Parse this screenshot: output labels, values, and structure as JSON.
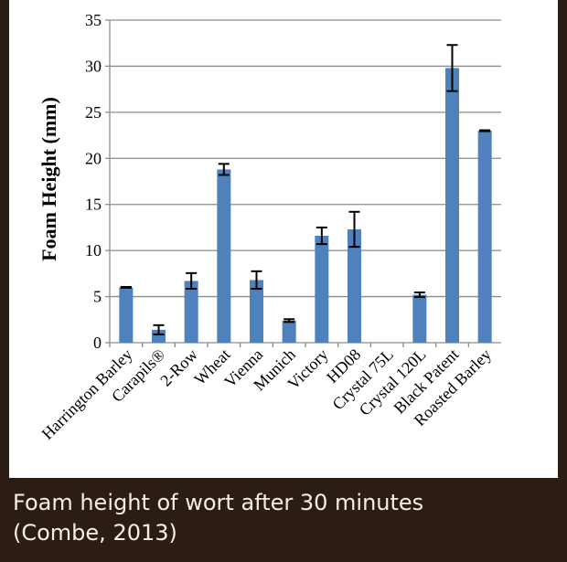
{
  "chart_data": {
    "type": "bar",
    "ylabel": "Foam Height (mm)",
    "xlabel": "",
    "ylim": [
      0,
      35
    ],
    "yticks": [
      0,
      5,
      10,
      15,
      20,
      25,
      30,
      35
    ],
    "grid": true,
    "categories": [
      "Harrington Barley",
      "Carapils®",
      "2-Row",
      "Wheat",
      "Vienna",
      "Munich",
      "Victory",
      "HD08",
      "Crystal 75L",
      "Crystal 120L",
      "Black Patent",
      "Roasted Barley"
    ],
    "values": [
      6.0,
      1.4,
      6.7,
      18.8,
      6.8,
      2.4,
      11.6,
      12.3,
      0,
      5.2,
      29.8,
      23.0
    ],
    "errors": [
      0.05,
      0.5,
      0.85,
      0.6,
      0.95,
      0.15,
      0.9,
      1.9,
      0,
      0.25,
      2.5,
      0.05
    ],
    "bar_color": "#4f81bd"
  },
  "caption": {
    "line1": "Foam height of wort after 30 minutes",
    "line2": "(Combe, 2013)"
  }
}
